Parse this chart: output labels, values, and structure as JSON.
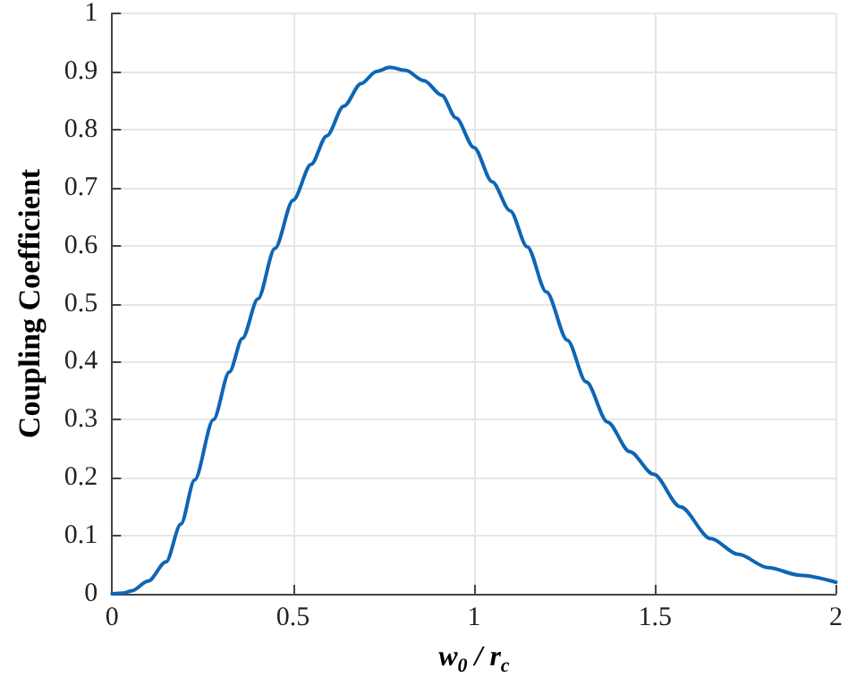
{
  "chart_data": {
    "type": "line",
    "xlabel": "w$_{0}$ / r$_{c}$",
    "ylabel": "Coupling Coefficient",
    "x": [
      0,
      0.03,
      0.054,
      0.1,
      0.149,
      0.19,
      0.228,
      0.28,
      0.324,
      0.36,
      0.403,
      0.45,
      0.5,
      0.55,
      0.593,
      0.64,
      0.688,
      0.73,
      0.768,
      0.81,
      0.862,
      0.911,
      0.95,
      1.0,
      1.05,
      1.1,
      1.147,
      1.2,
      1.258,
      1.31,
      1.369,
      1.43,
      1.496,
      1.57,
      1.654,
      1.73,
      1.813,
      1.9,
      2.0
    ],
    "series": [
      {
        "color": "#0e66b4",
        "values": [
          0,
          0.001,
          0.005,
          0.022,
          0.055,
          0.12,
          0.196,
          0.3,
          0.382,
          0.44,
          0.508,
          0.595,
          0.678,
          0.74,
          0.789,
          0.84,
          0.879,
          0.9,
          0.907,
          0.902,
          0.884,
          0.859,
          0.82,
          0.769,
          0.71,
          0.66,
          0.598,
          0.52,
          0.437,
          0.365,
          0.296,
          0.245,
          0.206,
          0.15,
          0.095,
          0.068,
          0.045,
          0.032,
          0.02
        ]
      }
    ],
    "xlim": [
      0,
      2
    ],
    "xticks": [
      0,
      0.5,
      1,
      1.5,
      2
    ],
    "ylim": [
      0,
      1
    ],
    "yticks": [
      0,
      0.1,
      0.2,
      0.3,
      0.4,
      0.5,
      0.6,
      0.7,
      0.8,
      0.9,
      1
    ],
    "grid": true,
    "marker": "none",
    "line_style": "solid"
  }
}
